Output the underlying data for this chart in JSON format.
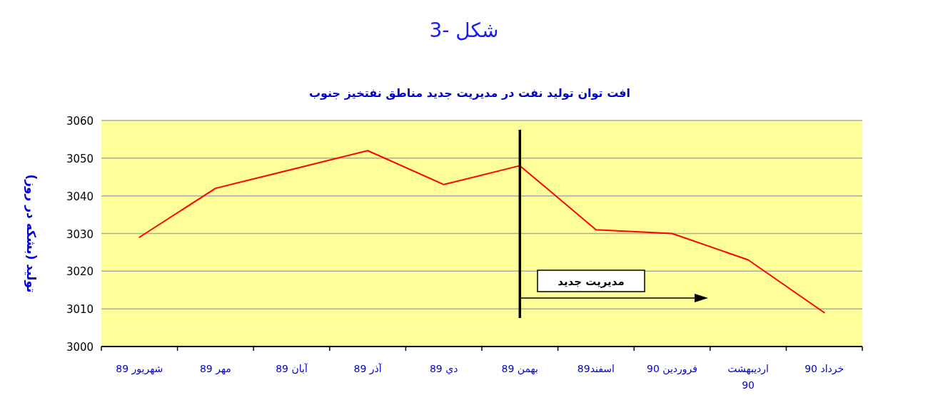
{
  "chart_data": {
    "type": "line",
    "title": "شکل -3",
    "subtitle": "افت توان تولید نفت در مدیریت جدید مناطق نفتخیز جنوب",
    "ylabel": "تولید (بشکه در روز)",
    "categories": [
      "شهریور 89",
      "مهر 89",
      "آبان 89",
      "آذر 89",
      "دي 89",
      "بهمن 89",
      "اسفند89",
      "فروردین 90",
      "اردیبهشت 90",
      "خرداد 90"
    ],
    "series": [
      {
        "color": "#ff0000",
        "values": [
          3029,
          3042,
          3047,
          3052,
          3043,
          3048,
          3031,
          3030,
          3023,
          3009
        ]
      }
    ],
    "ylim": [
      3000,
      3060
    ],
    "yticks": [
      3000,
      3010,
      3020,
      3030,
      3040,
      3050,
      3060
    ],
    "grid": "y",
    "marker": "none",
    "line_style": "solid",
    "ref_lines": [
      {
        "axis": "x",
        "value": "بهمن 89",
        "label": "مدیریت جدید",
        "color": "#000000"
      }
    ]
  }
}
